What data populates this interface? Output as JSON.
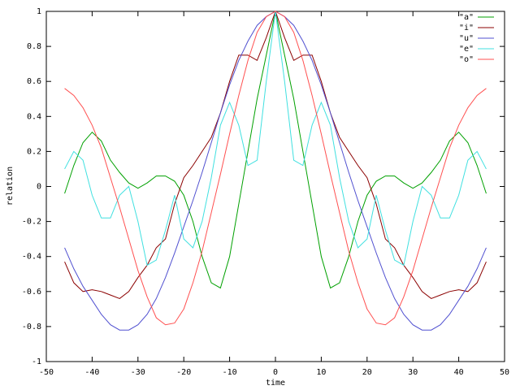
{
  "chart_data": {
    "type": "line",
    "xlabel": "time",
    "ylabel": "relation",
    "x": [
      -46,
      -44,
      -42,
      -40,
      -38,
      -36,
      -34,
      -32,
      -30,
      -28,
      -26,
      -24,
      -22,
      -20,
      -18,
      -16,
      -14,
      -12,
      -10,
      -8,
      -6,
      -4,
      -2,
      0,
      2,
      4,
      6,
      8,
      10,
      12,
      14,
      16,
      18,
      20,
      22,
      24,
      26,
      28,
      30,
      32,
      34,
      36,
      38,
      40,
      42,
      44,
      46
    ],
    "xlim": [
      -50,
      50
    ],
    "xticks": [
      -50,
      -40,
      -30,
      -20,
      -10,
      0,
      10,
      20,
      30,
      40,
      50
    ],
    "ylim": [
      -1,
      1
    ],
    "yticks": [
      -1,
      -0.8,
      -0.6,
      -0.4,
      -0.2,
      0,
      0.2,
      0.4,
      0.6,
      0.8,
      1
    ],
    "legend": "top-right",
    "series": [
      {
        "name": "\"a\"",
        "color": "#00a000",
        "values": [
          -0.04,
          0.12,
          0.25,
          0.31,
          0.26,
          0.15,
          0.08,
          0.02,
          -0.01,
          0.02,
          0.06,
          0.06,
          0.03,
          -0.05,
          -0.2,
          -0.4,
          -0.55,
          -0.58,
          -0.4,
          -0.1,
          0.2,
          0.5,
          0.75,
          1,
          0.75,
          0.5,
          0.2,
          -0.1,
          -0.4,
          -0.58,
          -0.55,
          -0.4,
          -0.2,
          -0.05,
          0.03,
          0.06,
          0.06,
          0.02,
          -0.01,
          0.02,
          0.08,
          0.15,
          0.26,
          0.31,
          0.25,
          0.12,
          -0.04
        ]
      },
      {
        "name": "\"i\"",
        "color": "#8b0000",
        "values": [
          -0.43,
          -0.55,
          -0.6,
          -0.59,
          -0.6,
          -0.62,
          -0.64,
          -0.6,
          -0.52,
          -0.45,
          -0.35,
          -0.3,
          -0.1,
          0.05,
          0.12,
          0.2,
          0.28,
          0.42,
          0.6,
          0.75,
          0.75,
          0.72,
          0.85,
          1,
          0.85,
          0.72,
          0.75,
          0.75,
          0.6,
          0.42,
          0.28,
          0.2,
          0.12,
          0.05,
          -0.1,
          -0.3,
          -0.35,
          -0.45,
          -0.52,
          -0.6,
          -0.64,
          -0.62,
          -0.6,
          -0.59,
          -0.6,
          -0.55,
          -0.43
        ]
      },
      {
        "name": "\"u\"",
        "color": "#5050d0",
        "values": [
          -0.35,
          -0.47,
          -0.57,
          -0.65,
          -0.73,
          -0.79,
          -0.82,
          -0.82,
          -0.79,
          -0.73,
          -0.64,
          -0.52,
          -0.38,
          -0.23,
          -0.08,
          0.08,
          0.25,
          0.42,
          0.58,
          0.72,
          0.83,
          0.92,
          0.97,
          1,
          0.97,
          0.92,
          0.83,
          0.72,
          0.58,
          0.42,
          0.25,
          0.08,
          -0.08,
          -0.23,
          -0.38,
          -0.52,
          -0.64,
          -0.73,
          -0.79,
          -0.82,
          -0.82,
          -0.79,
          -0.73,
          -0.65,
          -0.57,
          -0.47,
          -0.35
        ]
      },
      {
        "name": "\"e\"",
        "color": "#40e0e0",
        "values": [
          0.1,
          0.2,
          0.15,
          -0.05,
          -0.18,
          -0.18,
          -0.05,
          0.0,
          -0.2,
          -0.45,
          -0.42,
          -0.25,
          -0.05,
          -0.3,
          -0.35,
          -0.2,
          0.05,
          0.35,
          0.48,
          0.35,
          0.12,
          0.15,
          0.6,
          1,
          0.6,
          0.15,
          0.12,
          0.35,
          0.48,
          0.35,
          0.05,
          -0.2,
          -0.35,
          -0.3,
          -0.05,
          -0.25,
          -0.42,
          -0.45,
          -0.2,
          0.0,
          -0.05,
          -0.18,
          -0.18,
          -0.05,
          0.15,
          0.2,
          0.1
        ]
      },
      {
        "name": "\"o\"",
        "color": "#ff5050",
        "values": [
          0.56,
          0.52,
          0.45,
          0.35,
          0.22,
          0.05,
          -0.12,
          -0.3,
          -0.48,
          -0.63,
          -0.75,
          -0.79,
          -0.78,
          -0.7,
          -0.55,
          -0.37,
          -0.15,
          0.07,
          0.3,
          0.52,
          0.72,
          0.88,
          0.97,
          1,
          0.97,
          0.88,
          0.72,
          0.52,
          0.3,
          0.07,
          -0.15,
          -0.37,
          -0.55,
          -0.7,
          -0.78,
          -0.79,
          -0.75,
          -0.63,
          -0.48,
          -0.3,
          -0.12,
          0.05,
          0.22,
          0.35,
          0.45,
          0.52,
          0.56
        ]
      }
    ]
  }
}
